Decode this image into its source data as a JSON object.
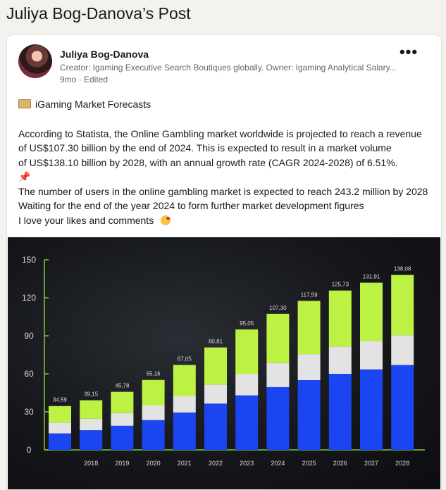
{
  "page": {
    "title": "Juliya Bog-Danova’s Post"
  },
  "post": {
    "author": "Juliya Bog-Danova",
    "subtitle": "Creator: Igaming Executive Search Boutiques globally. Owner: Igaming Analytical Salary...",
    "time": "9mo",
    "edited": "Edited",
    "more_label": "•••",
    "heading": "iGaming Market Forecasts",
    "lines": [
      "According to Statista, the Online Gambling market worldwide is projected to reach a revenue",
      "of US$107.30 billion by the end of 2024. This is expected to result in a market volume",
      "of US$138.10 billion by 2028, with an annual growth rate (CAGR 2024-2028) of 6.51%."
    ],
    "line_users": "The number of users in the online gambling market is expected to reach 243.2 million by 2028",
    "line_waiting": "Waiting for the end of the year 2024 to form further market development figures",
    "line_love": "I love your likes and comments",
    "pin_icon": "📌"
  },
  "chart_data": {
    "type": "bar",
    "categories": [
      "",
      "2018",
      "2019",
      "2020",
      "2021",
      "2022",
      "2023",
      "2024",
      "2025",
      "2026",
      "2027",
      "2028"
    ],
    "values": [
      34.59,
      39.15,
      45.78,
      55.16,
      67.05,
      80.81,
      95.05,
      107.3,
      117.59,
      125.73,
      131.91,
      138.08
    ],
    "value_labels": [
      "34,59",
      "39,15",
      "45,78",
      "55,16",
      "67,05",
      "80,81",
      "95,05",
      "107,30",
      "117,59",
      "125,73",
      "131,91",
      "138,08"
    ],
    "segments_blue": [
      13,
      15.5,
      19,
      23.5,
      29.5,
      36.5,
      43,
      49.5,
      55,
      60,
      63.5,
      67
    ],
    "segments_gray": [
      8.5,
      9,
      10,
      11.5,
      13,
      15,
      17,
      19,
      20.5,
      21.5,
      22.5,
      23.5
    ],
    "ylim": [
      0,
      150
    ],
    "yticks": [
      "0",
      "30",
      "60",
      "90",
      "120",
      "150"
    ],
    "grid": false,
    "colors": {
      "blue": "#1a45f0",
      "gray": "#e3e3e3",
      "green": "#bdf244",
      "axis": "#86c43a"
    }
  }
}
